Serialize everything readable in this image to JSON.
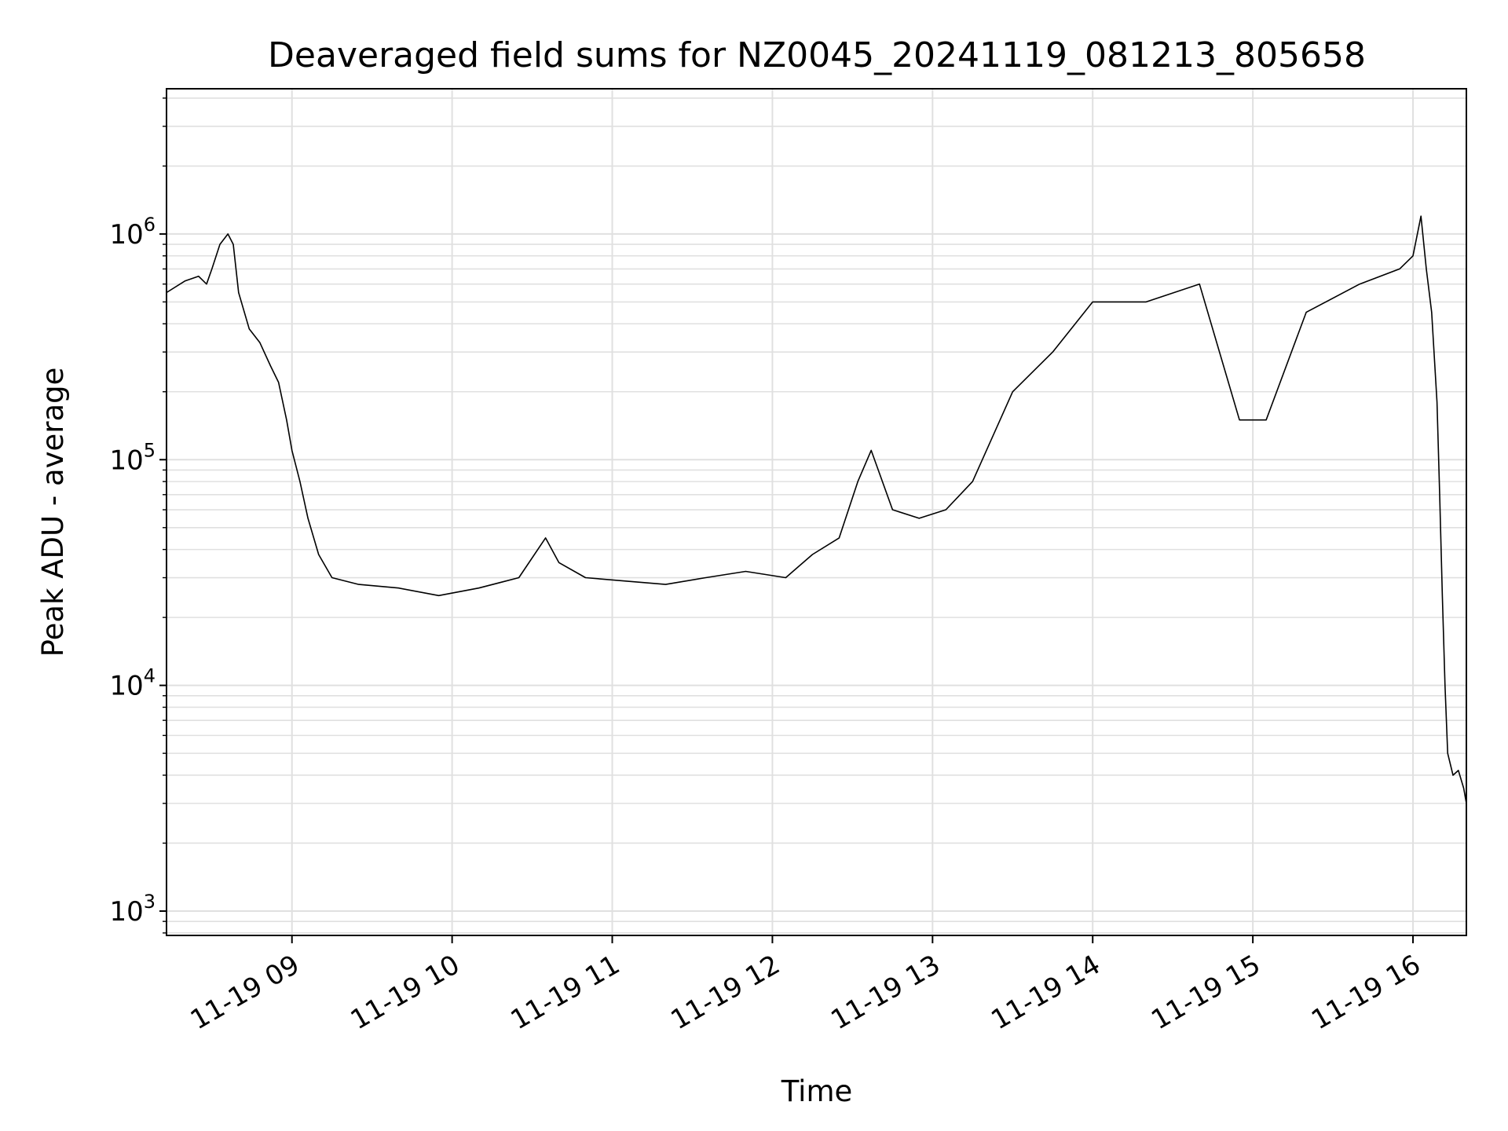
{
  "chart_data": {
    "type": "line",
    "title": "Deaveraged field sums for NZ0045_20241119_081213_805658",
    "xlabel": "Time",
    "ylabel": "Peak ADU - average",
    "yscale": "log",
    "xlim": [
      "2024-11-19 08:13",
      "2024-11-19 16:20"
    ],
    "ylim": [
      780,
      4400000
    ],
    "x_ticks": [
      "11-19 09",
      "11-19 10",
      "11-19 11",
      "11-19 12",
      "11-19 13",
      "11-19 14",
      "11-19 15",
      "11-19 16"
    ],
    "y_ticks": [
      {
        "value": 1000,
        "base": "10",
        "exp": "3"
      },
      {
        "value": 10000,
        "base": "10",
        "exp": "4"
      },
      {
        "value": 100000,
        "base": "10",
        "exp": "5"
      },
      {
        "value": 1000000,
        "base": "10",
        "exp": "6"
      }
    ],
    "grid": true,
    "line_color": "#000000",
    "grid_color": "#e0e0e0",
    "series": [
      {
        "values": [
          [
            "08:13",
            550000
          ],
          [
            "08:20",
            620000
          ],
          [
            "08:25",
            650000
          ],
          [
            "08:28",
            600000
          ],
          [
            "08:30",
            700000
          ],
          [
            "08:33",
            900000
          ],
          [
            "08:36",
            1000000
          ],
          [
            "08:38",
            900000
          ],
          [
            "08:40",
            550000
          ],
          [
            "08:44",
            380000
          ],
          [
            "08:48",
            330000
          ],
          [
            "08:52",
            260000
          ],
          [
            "08:55",
            220000
          ],
          [
            "08:58",
            150000
          ],
          [
            "09:00",
            110000
          ],
          [
            "09:03",
            80000
          ],
          [
            "09:06",
            55000
          ],
          [
            "09:10",
            38000
          ],
          [
            "09:15",
            30000
          ],
          [
            "09:25",
            28000
          ],
          [
            "09:40",
            27000
          ],
          [
            "09:55",
            25000
          ],
          [
            "10:10",
            27000
          ],
          [
            "10:25",
            30000
          ],
          [
            "10:35",
            45000
          ],
          [
            "10:40",
            35000
          ],
          [
            "10:50",
            30000
          ],
          [
            "11:05",
            29000
          ],
          [
            "11:20",
            28000
          ],
          [
            "11:35",
            30000
          ],
          [
            "11:50",
            32000
          ],
          [
            "12:05",
            30000
          ],
          [
            "12:15",
            38000
          ],
          [
            "12:25",
            45000
          ],
          [
            "12:32",
            80000
          ],
          [
            "12:37",
            110000
          ],
          [
            "12:45",
            60000
          ],
          [
            "12:55",
            55000
          ],
          [
            "13:05",
            60000
          ],
          [
            "13:15",
            80000
          ],
          [
            "13:30",
            200000
          ],
          [
            "13:45",
            300000
          ],
          [
            "14:00",
            500000
          ],
          [
            "14:20",
            500000
          ],
          [
            "14:40",
            600000
          ],
          [
            "14:55",
            150000
          ],
          [
            "15:05",
            150000
          ],
          [
            "15:20",
            450000
          ],
          [
            "15:40",
            600000
          ],
          [
            "15:55",
            700000
          ],
          [
            "16:00",
            800000
          ],
          [
            "16:03",
            1200000
          ],
          [
            "16:05",
            700000
          ],
          [
            "16:07",
            450000
          ],
          [
            "16:09",
            180000
          ],
          [
            "16:10",
            70000
          ],
          [
            "16:11",
            25000
          ],
          [
            "16:12",
            10000
          ],
          [
            "16:13",
            5000
          ],
          [
            "16:15",
            4000
          ],
          [
            "16:17",
            4200
          ],
          [
            "16:19",
            3500
          ],
          [
            "16:20",
            3000
          ]
        ]
      }
    ]
  }
}
